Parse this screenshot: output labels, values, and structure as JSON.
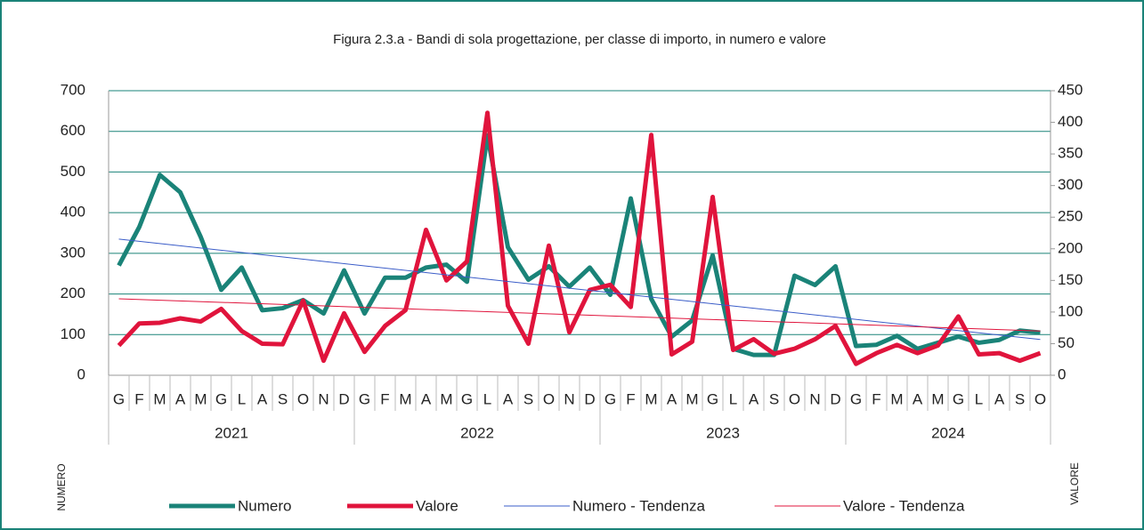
{
  "chart_data": {
    "type": "line",
    "title": "Figura 2.3.a - Bandi di sola progettazione, per classe di importo, in numero e valore",
    "ylabel": "NUMERO",
    "y2label": "VALORE",
    "groups": [
      {
        "label": "2021",
        "categories": [
          "G",
          "F",
          "M",
          "A",
          "M",
          "G",
          "L",
          "A",
          "S",
          "O",
          "N",
          "D"
        ]
      },
      {
        "label": "2022",
        "categories": [
          "G",
          "F",
          "M",
          "A",
          "M",
          "G",
          "L",
          "A",
          "S",
          "O",
          "N",
          "D"
        ]
      },
      {
        "label": "2023",
        "categories": [
          "G",
          "F",
          "M",
          "A",
          "M",
          "G",
          "L",
          "A",
          "S",
          "O",
          "N",
          "D"
        ]
      },
      {
        "label": "2024",
        "categories": [
          "G",
          "F",
          "M",
          "A",
          "M",
          "G",
          "L",
          "A",
          "S",
          "O"
        ]
      }
    ],
    "ylim": [
      0,
      700
    ],
    "yticks": [
      0,
      100,
      200,
      300,
      400,
      500,
      600,
      700
    ],
    "y2lim": [
      0,
      450
    ],
    "y2ticks": [
      0,
      50,
      100,
      150,
      200,
      250,
      300,
      350,
      400,
      450
    ],
    "grid": true,
    "legend": "bottom",
    "series": [
      {
        "name": "Numero",
        "color": "#1a8378",
        "axis": "y",
        "values": [
          270,
          365,
          493,
          450,
          340,
          210,
          265,
          160,
          165,
          185,
          152,
          258,
          152,
          240,
          240,
          265,
          272,
          230,
          590,
          315,
          235,
          268,
          218,
          265,
          198,
          435,
          188,
          95,
          135,
          295,
          65,
          50,
          50,
          245,
          222,
          268,
          72,
          75,
          97,
          65,
          80,
          95,
          80,
          87,
          110,
          105
        ]
      },
      {
        "name": "Valore",
        "color": "#e0143c",
        "axis": "y2",
        "values": [
          47,
          82,
          83,
          90,
          85,
          105,
          70,
          50,
          49,
          118,
          23,
          98,
          37,
          78,
          103,
          230,
          150,
          180,
          415,
          110,
          50,
          205,
          68,
          135,
          143,
          108,
          380,
          33,
          53,
          282,
          40,
          57,
          34,
          42,
          57,
          78,
          18,
          35,
          48,
          35,
          47,
          93,
          33,
          35,
          23,
          35
        ]
      }
    ],
    "trendlines": [
      {
        "name": "Numero - Tendenza",
        "color": "#3a5cc8",
        "axis": "y",
        "values": [
          335,
          88
        ]
      },
      {
        "name": "Valore - Tendenza",
        "color": "#e0143c",
        "axis": "y2",
        "values": [
          121,
          70
        ]
      }
    ]
  }
}
